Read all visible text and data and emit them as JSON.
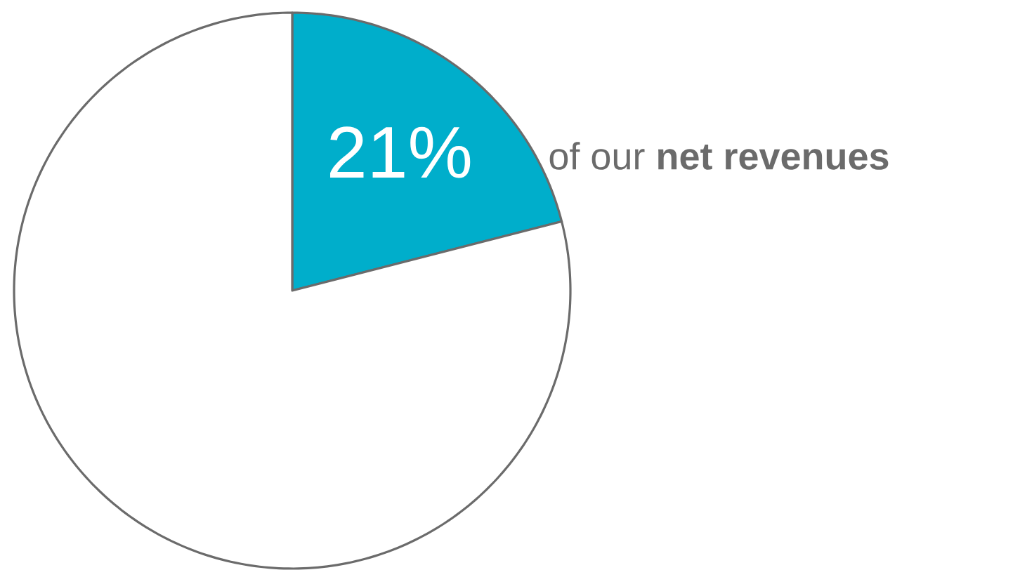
{
  "chart_data": {
    "type": "pie",
    "categories": [
      null,
      null
    ],
    "values": [
      21,
      79
    ],
    "colors": [
      "#00aecb",
      "#ffffff"
    ],
    "value_labels": [
      "21%",
      null
    ],
    "annotations": [
      "of our **net revenues**"
    ]
  }
}
